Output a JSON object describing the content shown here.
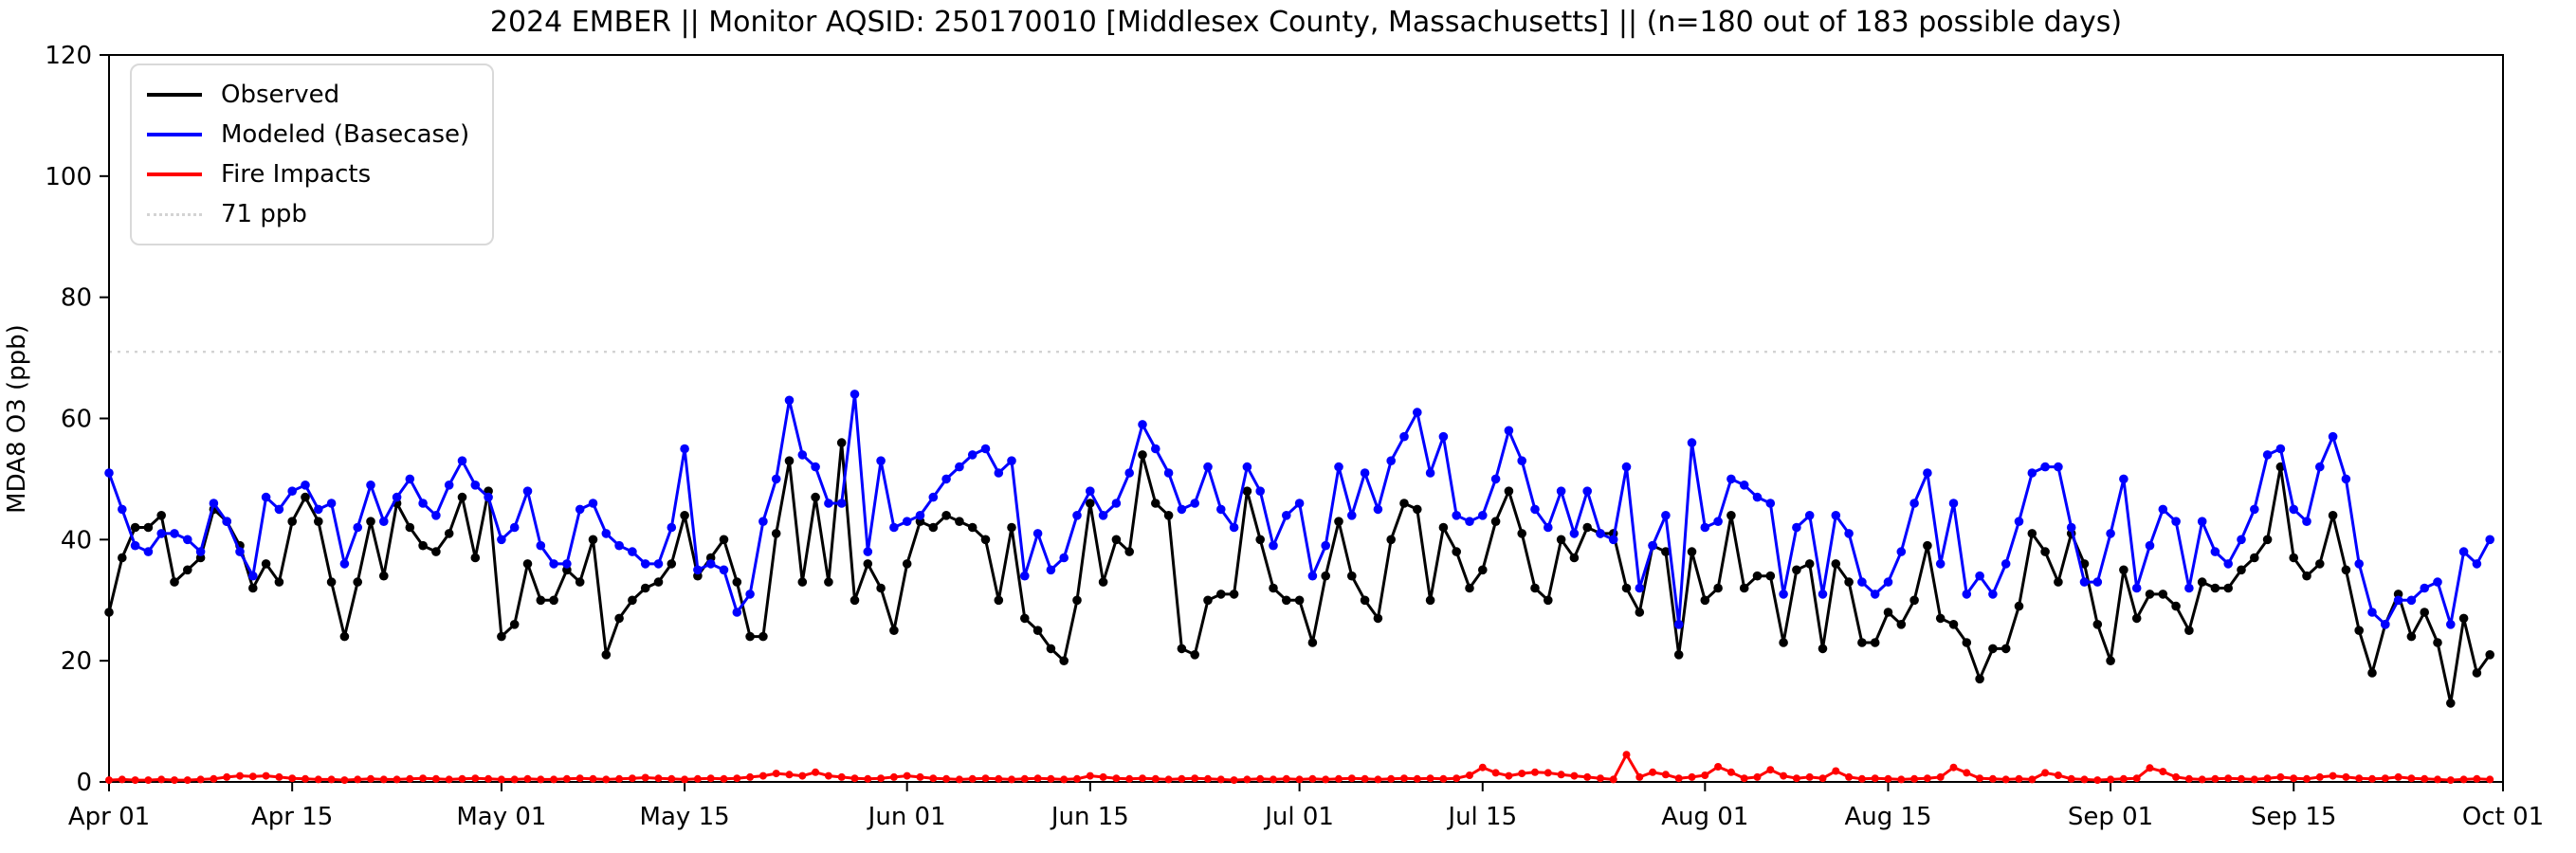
{
  "header": {
    "title": "2024 EMBER || Monitor AQSID: 250170010 [Middlesex County, Massachusetts] || (n=180 out of 183 possible days)"
  },
  "chart_data": {
    "type": "line",
    "title": "2024 EMBER || Monitor AQSID: 250170010 [Middlesex County, Massachusetts] || (n=180 out of 183 possible days)",
    "xlabel": "",
    "ylabel": "MDA8 O3 (ppb)",
    "ylim": [
      0,
      120
    ],
    "y_ticks": [
      0,
      20,
      40,
      60,
      80,
      100,
      120
    ],
    "grid": false,
    "legend_position": "upper-left",
    "x_domain_days": 183,
    "x_start_date": "Apr 01",
    "x_end_date": "Oct 01",
    "x_ticks": [
      {
        "day": 0,
        "label": "Apr 01"
      },
      {
        "day": 14,
        "label": "Apr 15"
      },
      {
        "day": 30,
        "label": "May 01"
      },
      {
        "day": 44,
        "label": "May 15"
      },
      {
        "day": 61,
        "label": "Jun 01"
      },
      {
        "day": 75,
        "label": "Jun 15"
      },
      {
        "day": 91,
        "label": "Jul 01"
      },
      {
        "day": 105,
        "label": "Jul 15"
      },
      {
        "day": 122,
        "label": "Aug 01"
      },
      {
        "day": 136,
        "label": "Aug 15"
      },
      {
        "day": 153,
        "label": "Sep 01"
      },
      {
        "day": 167,
        "label": "Sep 15"
      },
      {
        "day": 183,
        "label": "Oct 01"
      }
    ],
    "threshold": {
      "value": 71,
      "label": "71 ppb",
      "color": "#d3d3d3",
      "style": "dotted"
    },
    "series": [
      {
        "name": "Observed",
        "color": "#000000",
        "marker": "circle",
        "values": [
          28,
          37,
          42,
          42,
          44,
          33,
          35,
          37,
          45,
          43,
          39,
          32,
          36,
          33,
          43,
          47,
          43,
          33,
          24,
          33,
          43,
          34,
          46,
          42,
          39,
          38,
          41,
          47,
          37,
          48,
          24,
          26,
          36,
          30,
          30,
          35,
          33,
          40,
          21,
          27,
          30,
          32,
          33,
          36,
          44,
          34,
          37,
          40,
          33,
          24,
          24,
          41,
          53,
          33,
          47,
          33,
          56,
          30,
          36,
          32,
          25,
          36,
          43,
          42,
          44,
          43,
          42,
          40,
          30,
          42,
          27,
          25,
          22,
          20,
          30,
          46,
          33,
          40,
          38,
          54,
          46,
          44,
          22,
          21,
          30,
          31,
          31,
          48,
          40,
          32,
          30,
          30,
          23,
          34,
          43,
          34,
          30,
          27,
          40,
          46,
          45,
          30,
          42,
          38,
          32,
          35,
          43,
          48,
          41,
          32,
          30,
          40,
          37,
          42,
          41,
          41,
          32,
          28,
          39,
          38,
          21,
          38,
          30,
          32,
          44,
          32,
          34,
          34,
          23,
          35,
          36,
          22,
          36,
          33,
          23,
          23,
          28,
          26,
          30,
          39,
          27,
          26,
          23,
          17,
          22,
          22,
          29,
          41,
          38,
          33,
          41,
          36,
          26,
          20,
          35,
          27,
          31,
          31,
          29,
          25,
          33,
          32,
          32,
          35,
          37,
          40,
          52,
          37,
          34,
          36,
          44,
          35,
          25,
          18,
          26,
          31,
          24,
          28,
          23,
          13,
          27,
          18,
          21
        ]
      },
      {
        "name": "Modeled (Basecase)",
        "color": "#0000ff",
        "marker": "circle",
        "values": [
          51,
          45,
          39,
          38,
          41,
          41,
          40,
          38,
          46,
          43,
          38,
          34,
          47,
          45,
          48,
          49,
          45,
          46,
          36,
          42,
          49,
          43,
          47,
          50,
          46,
          44,
          49,
          53,
          49,
          47,
          40,
          42,
          48,
          39,
          36,
          36,
          45,
          46,
          41,
          39,
          38,
          36,
          36,
          42,
          55,
          35,
          36,
          35,
          28,
          31,
          43,
          50,
          63,
          54,
          52,
          46,
          46,
          64,
          38,
          53,
          42,
          43,
          44,
          47,
          50,
          52,
          54,
          55,
          51,
          53,
          34,
          41,
          35,
          37,
          44,
          48,
          44,
          46,
          51,
          59,
          55,
          51,
          45,
          46,
          52,
          45,
          42,
          52,
          48,
          39,
          44,
          46,
          34,
          39,
          52,
          44,
          51,
          45,
          53,
          57,
          61,
          51,
          57,
          44,
          43,
          44,
          50,
          58,
          53,
          45,
          42,
          48,
          41,
          48,
          41,
          40,
          52,
          32,
          39,
          44,
          26,
          56,
          42,
          43,
          50,
          49,
          47,
          46,
          31,
          42,
          44,
          31,
          44,
          41,
          33,
          31,
          33,
          38,
          46,
          51,
          36,
          46,
          31,
          34,
          31,
          36,
          43,
          51,
          52,
          52,
          42,
          33,
          33,
          41,
          50,
          32,
          39,
          45,
          43,
          32,
          43,
          38,
          36,
          40,
          45,
          54,
          55,
          45,
          43,
          52,
          57,
          50,
          36,
          28,
          26,
          30,
          30,
          32,
          33,
          26,
          38,
          36,
          40
        ]
      },
      {
        "name": "Fire Impacts",
        "color": "#ff0000",
        "marker": "circle",
        "values": [
          0.3,
          0.4,
          0.3,
          0.3,
          0.4,
          0.3,
          0.3,
          0.4,
          0.5,
          0.8,
          1.0,
          0.9,
          1.0,
          0.8,
          0.6,
          0.5,
          0.4,
          0.4,
          0.3,
          0.4,
          0.5,
          0.4,
          0.4,
          0.5,
          0.6,
          0.5,
          0.4,
          0.5,
          0.6,
          0.5,
          0.4,
          0.4,
          0.5,
          0.4,
          0.4,
          0.5,
          0.6,
          0.5,
          0.4,
          0.5,
          0.6,
          0.7,
          0.6,
          0.5,
          0.4,
          0.5,
          0.6,
          0.5,
          0.6,
          0.8,
          1.0,
          1.4,
          1.2,
          1.0,
          1.6,
          1.0,
          0.8,
          0.6,
          0.5,
          0.6,
          0.8,
          1.0,
          0.8,
          0.6,
          0.5,
          0.4,
          0.5,
          0.6,
          0.5,
          0.4,
          0.5,
          0.6,
          0.5,
          0.4,
          0.5,
          1.0,
          0.8,
          0.6,
          0.5,
          0.6,
          0.5,
          0.4,
          0.5,
          0.6,
          0.5,
          0.4,
          0.3,
          0.4,
          0.5,
          0.4,
          0.5,
          0.4,
          0.5,
          0.4,
          0.5,
          0.6,
          0.5,
          0.4,
          0.5,
          0.6,
          0.5,
          0.6,
          0.5,
          0.6,
          1.1,
          2.4,
          1.5,
          1.0,
          1.4,
          1.6,
          1.5,
          1.2,
          1.0,
          0.8,
          0.6,
          0.4,
          4.5,
          0.8,
          1.6,
          1.2,
          0.6,
          0.8,
          1.1,
          2.5,
          1.6,
          0.6,
          0.8,
          2.0,
          1.0,
          0.6,
          0.8,
          0.6,
          1.8,
          0.8,
          0.5,
          0.6,
          0.5,
          0.4,
          0.5,
          0.6,
          0.8,
          2.4,
          1.5,
          0.6,
          0.5,
          0.4,
          0.5,
          0.4,
          1.5,
          1.1,
          0.5,
          0.4,
          0.3,
          0.4,
          0.5,
          0.6,
          2.3,
          1.7,
          0.8,
          0.5,
          0.4,
          0.5,
          0.6,
          0.5,
          0.4,
          0.6,
          0.8,
          0.6,
          0.5,
          0.8,
          1.0,
          0.8,
          0.6,
          0.5,
          0.6,
          0.8,
          0.6,
          0.5,
          0.4,
          0.3,
          0.4,
          0.5,
          0.4
        ]
      }
    ]
  }
}
